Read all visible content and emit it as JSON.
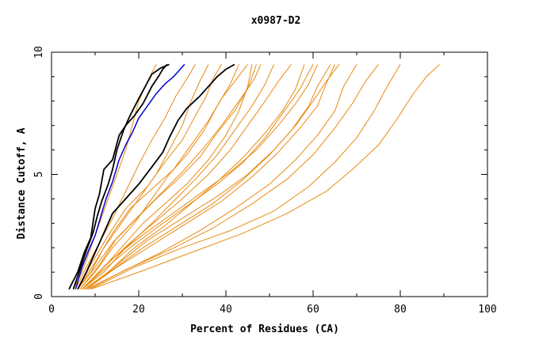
{
  "chart_data": {
    "type": "line",
    "title": "x0987-D2",
    "xlabel": "Percent of Residues (CA)",
    "ylabel": "Distance Cutoff, A",
    "xlim": [
      0,
      100
    ],
    "ylim": [
      0,
      10
    ],
    "xticks": [
      0,
      20,
      40,
      60,
      80,
      100
    ],
    "yticks": [
      0,
      5,
      10
    ],
    "grid": false,
    "legend": "none",
    "colors": {
      "highlight": "#000000",
      "blue": "#0000cc",
      "others": "#e88a10",
      "axis": "#000000"
    },
    "series": [
      {
        "color": "#000000",
        "width": 1.8,
        "points": [
          [
            4,
            0.3
          ],
          [
            6,
            1.0
          ],
          [
            7.5,
            1.8
          ],
          [
            9,
            2.4
          ],
          [
            10,
            3.6
          ],
          [
            11,
            4.2
          ],
          [
            12,
            5.2
          ],
          [
            14,
            5.6
          ],
          [
            15.5,
            6.6
          ],
          [
            17,
            7.0
          ],
          [
            19,
            7.4
          ],
          [
            21,
            7.9
          ],
          [
            23,
            8.6
          ],
          [
            24.5,
            9.0
          ],
          [
            25.5,
            9.3
          ],
          [
            26.5,
            9.5
          ]
        ]
      },
      {
        "color": "#000000",
        "width": 1.8,
        "points": [
          [
            5,
            0.3
          ],
          [
            6.5,
            1.1
          ],
          [
            8,
            1.9
          ],
          [
            9.5,
            2.6
          ],
          [
            10.5,
            3.3
          ],
          [
            11.5,
            3.9
          ],
          [
            13,
            4.6
          ],
          [
            14,
            5.2
          ],
          [
            15,
            6.0
          ],
          [
            16.5,
            6.8
          ],
          [
            18,
            7.4
          ],
          [
            20,
            8.1
          ],
          [
            21.5,
            8.6
          ],
          [
            23,
            9.1
          ],
          [
            25,
            9.35
          ],
          [
            27,
            9.5
          ]
        ]
      },
      {
        "color": "#0000cc",
        "width": 1.5,
        "points": [
          [
            5.5,
            0.3
          ],
          [
            7,
            1.2
          ],
          [
            8.5,
            1.9
          ],
          [
            10,
            2.5
          ],
          [
            11.5,
            3.4
          ],
          [
            12.5,
            4.0
          ],
          [
            14,
            4.7
          ],
          [
            15.5,
            5.6
          ],
          [
            17,
            6.2
          ],
          [
            18.5,
            6.7
          ],
          [
            20,
            7.3
          ],
          [
            22,
            7.8
          ],
          [
            24,
            8.3
          ],
          [
            26,
            8.7
          ],
          [
            28,
            9.0
          ],
          [
            29.5,
            9.3
          ],
          [
            30.5,
            9.5
          ]
        ]
      },
      {
        "color": "#000000",
        "width": 1.8,
        "points": [
          [
            6,
            0.3
          ],
          [
            8,
            1.0
          ],
          [
            10,
            1.8
          ],
          [
            12,
            2.6
          ],
          [
            14,
            3.4
          ],
          [
            17,
            4.0
          ],
          [
            20,
            4.6
          ],
          [
            23,
            5.3
          ],
          [
            25.5,
            5.9
          ],
          [
            27,
            6.5
          ],
          [
            29,
            7.2
          ],
          [
            31,
            7.7
          ],
          [
            34,
            8.2
          ],
          [
            36,
            8.6
          ],
          [
            38,
            9.0
          ],
          [
            40,
            9.3
          ],
          [
            42,
            9.5
          ]
        ]
      },
      {
        "color": "#e88a10",
        "width": 1,
        "points": [
          [
            5,
            0.3
          ],
          [
            7,
            1.0
          ],
          [
            9,
            2.0
          ],
          [
            11,
            3.0
          ],
          [
            13,
            4.0
          ],
          [
            15,
            5.0
          ],
          [
            17,
            6.0
          ],
          [
            18.5,
            7.0
          ],
          [
            20,
            8.0
          ],
          [
            22,
            8.8
          ],
          [
            24,
            9.5
          ]
        ]
      },
      {
        "color": "#e88a10",
        "width": 1,
        "points": [
          [
            5.5,
            0.3
          ],
          [
            8,
            1.2
          ],
          [
            11,
            2.2
          ],
          [
            14,
            3.2
          ],
          [
            17,
            4.3
          ],
          [
            20,
            5.4
          ],
          [
            23,
            6.4
          ],
          [
            26,
            7.3
          ],
          [
            28.5,
            8.2
          ],
          [
            31,
            8.9
          ],
          [
            33,
            9.5
          ]
        ]
      },
      {
        "color": "#e88a10",
        "width": 1,
        "points": [
          [
            6,
            0.3
          ],
          [
            9,
            1.0
          ],
          [
            12,
            2.0
          ],
          [
            16,
            3.0
          ],
          [
            20,
            4.0
          ],
          [
            24,
            5.0
          ],
          [
            27,
            6.0
          ],
          [
            30,
            7.0
          ],
          [
            32,
            8.0
          ],
          [
            34,
            8.8
          ],
          [
            36,
            9.5
          ]
        ]
      },
      {
        "color": "#e88a10",
        "width": 1,
        "points": [
          [
            6,
            0.3
          ],
          [
            9,
            1.3
          ],
          [
            13,
            2.5
          ],
          [
            17,
            3.6
          ],
          [
            22,
            4.5
          ],
          [
            26,
            5.5
          ],
          [
            30,
            6.4
          ],
          [
            33,
            7.4
          ],
          [
            35.5,
            8.2
          ],
          [
            37,
            8.9
          ],
          [
            39,
            9.5
          ]
        ]
      },
      {
        "color": "#e88a10",
        "width": 1,
        "points": [
          [
            6.5,
            0.3
          ],
          [
            10,
            1.0
          ],
          [
            14,
            2.0
          ],
          [
            19,
            3.0
          ],
          [
            23,
            4.0
          ],
          [
            27,
            5.0
          ],
          [
            31,
            5.8
          ],
          [
            35,
            6.8
          ],
          [
            38,
            7.8
          ],
          [
            41,
            8.7
          ],
          [
            43,
            9.5
          ]
        ]
      },
      {
        "color": "#e88a10",
        "width": 1,
        "points": [
          [
            6,
            0.3
          ],
          [
            10,
            1.4
          ],
          [
            14,
            2.6
          ],
          [
            18,
            3.6
          ],
          [
            23,
            4.4
          ],
          [
            28,
            5.2
          ],
          [
            32,
            6.2
          ],
          [
            36,
            7.2
          ],
          [
            39,
            8.1
          ],
          [
            42,
            8.8
          ],
          [
            45,
            9.5
          ]
        ]
      },
      {
        "color": "#e88a10",
        "width": 1,
        "points": [
          [
            7,
            0.3
          ],
          [
            11,
            1.0
          ],
          [
            16,
            2.0
          ],
          [
            21,
            3.0
          ],
          [
            26,
            3.8
          ],
          [
            31,
            4.6
          ],
          [
            36,
            5.6
          ],
          [
            40,
            6.6
          ],
          [
            43,
            7.6
          ],
          [
            45,
            8.6
          ],
          [
            46,
            9.5
          ]
        ]
      },
      {
        "color": "#e88a10",
        "width": 1,
        "points": [
          [
            6.5,
            0.3
          ],
          [
            11,
            1.3
          ],
          [
            15,
            2.4
          ],
          [
            20,
            3.3
          ],
          [
            25,
            4.2
          ],
          [
            30,
            5.1
          ],
          [
            35,
            6.1
          ],
          [
            39,
            7.0
          ],
          [
            43,
            8.0
          ],
          [
            46.5,
            8.9
          ],
          [
            48,
            9.5
          ]
        ]
      },
      {
        "color": "#e88a10",
        "width": 1,
        "points": [
          [
            7,
            0.3
          ],
          [
            12,
            1.0
          ],
          [
            17,
            2.0
          ],
          [
            23,
            3.0
          ],
          [
            28,
            3.9
          ],
          [
            33,
            4.8
          ],
          [
            38,
            5.8
          ],
          [
            42,
            6.8
          ],
          [
            46,
            7.8
          ],
          [
            49,
            8.7
          ],
          [
            51,
            9.5
          ]
        ]
      },
      {
        "color": "#e88a10",
        "width": 1,
        "points": [
          [
            7,
            0.3
          ],
          [
            12,
            1.2
          ],
          [
            18,
            2.2
          ],
          [
            24,
            3.1
          ],
          [
            30,
            4.0
          ],
          [
            36,
            5.0
          ],
          [
            41,
            6.0
          ],
          [
            45,
            7.0
          ],
          [
            49,
            8.0
          ],
          [
            52,
            8.8
          ],
          [
            55,
            9.5
          ]
        ]
      },
      {
        "color": "#e88a10",
        "width": 1,
        "points": [
          [
            7.5,
            0.3
          ],
          [
            13,
            1.0
          ],
          [
            19,
            2.0
          ],
          [
            26,
            2.9
          ],
          [
            32,
            3.8
          ],
          [
            38,
            4.7
          ],
          [
            44,
            5.7
          ],
          [
            49,
            6.7
          ],
          [
            53,
            7.6
          ],
          [
            56,
            8.5
          ],
          [
            58,
            9.5
          ]
        ]
      },
      {
        "color": "#e88a10",
        "width": 1,
        "points": [
          [
            7,
            0.3
          ],
          [
            13,
            1.4
          ],
          [
            20,
            2.4
          ],
          [
            27,
            3.3
          ],
          [
            34,
            4.2
          ],
          [
            41,
            5.1
          ],
          [
            47,
            6.0
          ],
          [
            52,
            7.0
          ],
          [
            56,
            7.9
          ],
          [
            59,
            8.7
          ],
          [
            61,
            9.5
          ]
        ]
      },
      {
        "color": "#e88a10",
        "width": 1,
        "points": [
          [
            7.5,
            0.3
          ],
          [
            14,
            1.1
          ],
          [
            21,
            2.0
          ],
          [
            29,
            2.9
          ],
          [
            37,
            3.8
          ],
          [
            44,
            4.8
          ],
          [
            50,
            5.8
          ],
          [
            55,
            6.8
          ],
          [
            59,
            7.8
          ],
          [
            61,
            8.6
          ],
          [
            64,
            9.5
          ]
        ]
      },
      {
        "color": "#e88a10",
        "width": 1,
        "points": [
          [
            8,
            0.3
          ],
          [
            15,
            1.2
          ],
          [
            23,
            2.1
          ],
          [
            31,
            3.0
          ],
          [
            39,
            3.9
          ],
          [
            46,
            4.9
          ],
          [
            52,
            5.9
          ],
          [
            57,
            6.9
          ],
          [
            61,
            7.8
          ],
          [
            63,
            8.7
          ],
          [
            65,
            9.5
          ]
        ]
      },
      {
        "color": "#e88a10",
        "width": 1,
        "points": [
          [
            8,
            0.3
          ],
          [
            16,
            1.0
          ],
          [
            25,
            1.8
          ],
          [
            34,
            2.7
          ],
          [
            42,
            3.6
          ],
          [
            50,
            4.6
          ],
          [
            56,
            5.6
          ],
          [
            61,
            6.6
          ],
          [
            65,
            7.6
          ],
          [
            67,
            8.6
          ],
          [
            70,
            9.5
          ]
        ]
      },
      {
        "color": "#e88a10",
        "width": 1,
        "points": [
          [
            8.5,
            0.3
          ],
          [
            17,
            1.1
          ],
          [
            27,
            1.9
          ],
          [
            37,
            2.8
          ],
          [
            46,
            3.8
          ],
          [
            54,
            4.8
          ],
          [
            60,
            5.8
          ],
          [
            65,
            6.9
          ],
          [
            69,
            7.9
          ],
          [
            72,
            8.8
          ],
          [
            75,
            9.5
          ]
        ]
      },
      {
        "color": "#e88a10",
        "width": 1,
        "points": [
          [
            9,
            0.3
          ],
          [
            19,
            1.2
          ],
          [
            30,
            2.0
          ],
          [
            41,
            2.7
          ],
          [
            51,
            3.5
          ],
          [
            59,
            4.5
          ],
          [
            65,
            5.5
          ],
          [
            70,
            6.5
          ],
          [
            74,
            7.6
          ],
          [
            77,
            8.6
          ],
          [
            80,
            9.5
          ]
        ]
      },
      {
        "color": "#e88a10",
        "width": 1,
        "points": [
          [
            9,
            0.3
          ],
          [
            20,
            1.0
          ],
          [
            32,
            1.8
          ],
          [
            44,
            2.6
          ],
          [
            54,
            3.4
          ],
          [
            63,
            4.3
          ],
          [
            69,
            5.2
          ],
          [
            75,
            6.2
          ],
          [
            79,
            7.2
          ],
          [
            83,
            8.3
          ],
          [
            86,
            9.0
          ],
          [
            89,
            9.5
          ]
        ]
      },
      {
        "color": "#e88a10",
        "width": 1,
        "points": [
          [
            6,
            0.3
          ],
          [
            10,
            1.2
          ],
          [
            14,
            2.2
          ],
          [
            19,
            3.1
          ],
          [
            24,
            4.0
          ],
          [
            29,
            4.8
          ],
          [
            34,
            5.7
          ],
          [
            38,
            6.7
          ],
          [
            42,
            7.6
          ],
          [
            45,
            8.5
          ],
          [
            47,
            9.5
          ]
        ]
      },
      {
        "color": "#e88a10",
        "width": 1,
        "points": [
          [
            7,
            0.3
          ],
          [
            12,
            1.1
          ],
          [
            18,
            2.0
          ],
          [
            24,
            2.8
          ],
          [
            31,
            3.7
          ],
          [
            38,
            4.6
          ],
          [
            44,
            5.5
          ],
          [
            49,
            6.5
          ],
          [
            53,
            7.5
          ],
          [
            57,
            8.5
          ],
          [
            60,
            9.5
          ]
        ]
      },
      {
        "color": "#e88a10",
        "width": 1,
        "points": [
          [
            8,
            0.3
          ],
          [
            15,
            1.3
          ],
          [
            22,
            2.3
          ],
          [
            30,
            3.2
          ],
          [
            38,
            4.1
          ],
          [
            45,
            5.0
          ],
          [
            51,
            6.0
          ],
          [
            56,
            7.0
          ],
          [
            60,
            8.0
          ],
          [
            63,
            8.8
          ],
          [
            66,
            9.5
          ]
        ]
      }
    ]
  }
}
